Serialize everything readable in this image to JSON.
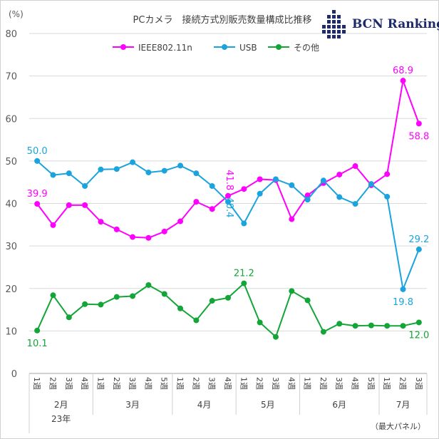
{
  "brand": {
    "name": "BCN Ranking",
    "color": "#1f2a6b"
  },
  "chart_data": {
    "type": "line",
    "title": "PCカメラ　接続方式別販売数量構成比推移",
    "y_unit": "(%)",
    "ylim": [
      0,
      80
    ],
    "yticks": [
      "0",
      "10",
      "20",
      "30",
      "40",
      "50",
      "60",
      "70",
      "80"
    ],
    "grid": true,
    "legend_position": "top",
    "footnote": "（最大パネル）",
    "categories": [
      "1週",
      "2週",
      "3週",
      "4週",
      "1週",
      "2週",
      "3週",
      "4週",
      "5週",
      "1週",
      "2週",
      "3週",
      "4週",
      "1週",
      "2週",
      "3週",
      "4週",
      "1週",
      "2週",
      "3週",
      "4週",
      "5週",
      "1週",
      "2週",
      "3週"
    ],
    "months": [
      {
        "label": "2月",
        "start": 0,
        "end": 3,
        "year": "23年"
      },
      {
        "label": "3月",
        "start": 4,
        "end": 8
      },
      {
        "label": "4月",
        "start": 9,
        "end": 12
      },
      {
        "label": "5月",
        "start": 13,
        "end": 16
      },
      {
        "label": "6月",
        "start": 17,
        "end": 21
      },
      {
        "label": "7月",
        "start": 22,
        "end": 24
      }
    ],
    "series": [
      {
        "name": "IEEE802.11n",
        "color": "#ff00ff",
        "values": [
          39.9,
          34.9,
          39.6,
          39.6,
          35.7,
          33.9,
          32.1,
          31.9,
          33.4,
          35.8,
          40.4,
          38.7,
          41.8,
          43.4,
          45.7,
          45.5,
          36.3,
          41.9,
          44.8,
          46.8,
          48.8,
          44.3,
          46.9,
          68.9,
          58.8
        ],
        "labels": [
          {
            "index": 0,
            "text": "39.9"
          },
          {
            "index": 12,
            "text": "41.8"
          },
          {
            "index": 23,
            "text": "68.9"
          },
          {
            "index": 24,
            "text": "58.8"
          }
        ]
      },
      {
        "name": "USB",
        "color": "#1aa3dd",
        "values": [
          50.0,
          46.7,
          47.1,
          44.1,
          48.0,
          48.1,
          49.7,
          47.3,
          47.7,
          48.9,
          47.1,
          44.1,
          40.4,
          35.3,
          42.3,
          45.7,
          44.3,
          40.9,
          45.4,
          41.5,
          39.9,
          44.6,
          41.6,
          19.8,
          29.2
        ],
        "labels": [
          {
            "index": 0,
            "text": "50.0"
          },
          {
            "index": 12,
            "text": "40.4"
          },
          {
            "index": 23,
            "text": "19.8"
          },
          {
            "index": 24,
            "text": "29.2"
          }
        ]
      },
      {
        "name": "その他",
        "color": "#13a538",
        "values": [
          10.1,
          18.4,
          13.2,
          16.3,
          16.2,
          18.0,
          18.2,
          20.8,
          18.7,
          15.3,
          12.5,
          17.1,
          17.8,
          21.2,
          12.0,
          8.6,
          19.4,
          17.2,
          9.8,
          11.7,
          11.2,
          11.3,
          11.2,
          11.2,
          12.0
        ],
        "labels": [
          {
            "index": 0,
            "text": "10.1"
          },
          {
            "index": 13,
            "text": "21.2"
          },
          {
            "index": 24,
            "text": "12.0"
          }
        ]
      }
    ]
  }
}
